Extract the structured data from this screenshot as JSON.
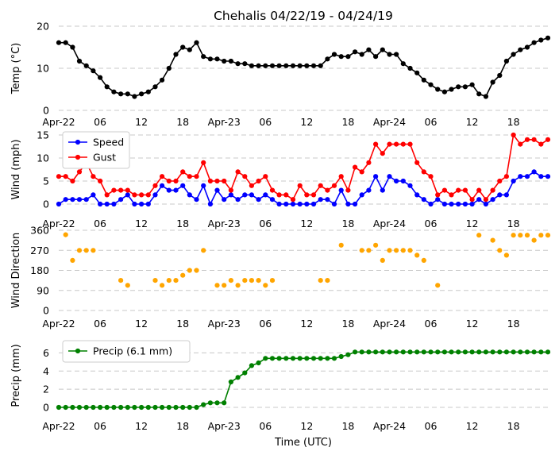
{
  "page": {
    "title": "Chehalis 04/22/19 - 04/24/19",
    "xlabel": "Time (UTC)"
  },
  "colors": {
    "temp": "#000000",
    "speed": "#0000ff",
    "gust": "#ff0000",
    "direction": "#ffa500",
    "precip": "#008000",
    "grid": "#c8c8c8"
  },
  "xaxis": {
    "range_hours": [
      0,
      71
    ],
    "tick_hours": [
      0,
      6,
      12,
      18,
      24,
      30,
      36,
      42,
      48,
      54,
      60,
      66
    ],
    "tick_labels": [
      "Apr-22",
      "06",
      "12",
      "18",
      "Apr-23",
      "06",
      "12",
      "18",
      "Apr-24",
      "06",
      "12",
      "18"
    ]
  },
  "chart_data": [
    {
      "type": "line",
      "ylabel": "Temp ($^\\circ$C)",
      "ylim": [
        0,
        20
      ],
      "yticks": [
        0,
        10,
        20
      ],
      "grid": true,
      "series": [
        {
          "name": "",
          "color_key": "temp",
          "x_hours": [
            0,
            1,
            2,
            3,
            4,
            5,
            6,
            7,
            8,
            9,
            10,
            11,
            12,
            13,
            14,
            15,
            16,
            17,
            18,
            19,
            20,
            21,
            22,
            23,
            24,
            25,
            26,
            27,
            28,
            29,
            30,
            31,
            32,
            33,
            34,
            35,
            36,
            37,
            38,
            39,
            40,
            41,
            42,
            43,
            44,
            45,
            46,
            47,
            48,
            49,
            50,
            51,
            52,
            53,
            54,
            55,
            56,
            57,
            58,
            59,
            60,
            61,
            62,
            63,
            64,
            65,
            66,
            67,
            68,
            69,
            70,
            71
          ],
          "values": [
            16.1,
            16.1,
            15.0,
            11.7,
            10.6,
            9.4,
            7.8,
            5.6,
            4.4,
            3.9,
            3.9,
            3.3,
            3.9,
            4.4,
            5.6,
            7.2,
            10.0,
            13.3,
            15.0,
            14.4,
            16.1,
            12.8,
            12.2,
            12.2,
            11.7,
            11.7,
            11.1,
            11.1,
            10.6,
            10.6,
            10.6,
            10.6,
            10.6,
            10.6,
            10.6,
            10.6,
            10.6,
            10.6,
            10.6,
            12.2,
            13.3,
            12.8,
            12.8,
            13.9,
            13.3,
            14.4,
            12.8,
            14.4,
            13.3,
            13.3,
            11.1,
            10.0,
            8.9,
            7.2,
            6.1,
            5.0,
            4.4,
            5.0,
            5.6,
            5.6,
            6.1,
            3.9,
            3.3,
            6.7,
            8.3,
            11.7,
            13.3,
            14.4,
            15.0,
            16.1,
            16.7,
            17.2
          ]
        }
      ]
    },
    {
      "type": "line",
      "ylabel": "Wind (mph)",
      "ylim": [
        0,
        15
      ],
      "yticks": [
        0,
        5,
        10,
        15
      ],
      "grid": true,
      "legend": "upper-left",
      "series": [
        {
          "name": "Speed",
          "color_key": "speed",
          "x_hours": [
            0,
            1,
            2,
            3,
            4,
            5,
            6,
            7,
            8,
            9,
            10,
            11,
            12,
            13,
            14,
            15,
            16,
            17,
            18,
            19,
            20,
            21,
            22,
            23,
            24,
            25,
            26,
            27,
            28,
            29,
            30,
            31,
            32,
            33,
            34,
            35,
            36,
            37,
            38,
            39,
            40,
            41,
            42,
            43,
            44,
            45,
            46,
            47,
            48,
            49,
            50,
            51,
            52,
            53,
            54,
            55,
            56,
            57,
            58,
            59,
            60,
            61,
            62,
            63,
            64,
            65,
            66,
            67,
            68,
            69,
            70,
            71
          ],
          "values": [
            0,
            1,
            1,
            1,
            1,
            2,
            0,
            0,
            0,
            1,
            2,
            0,
            0,
            0,
            2,
            4,
            3,
            3,
            4,
            2,
            1,
            4,
            0,
            3,
            1,
            2,
            1,
            2,
            2,
            1,
            2,
            1,
            0,
            0,
            0,
            0,
            0,
            0,
            1,
            1,
            0,
            3,
            0,
            0,
            2,
            3,
            6,
            3,
            6,
            5,
            5,
            4,
            2,
            1,
            0,
            1,
            0,
            0,
            0,
            0,
            0,
            1,
            0,
            1,
            2,
            2,
            5,
            6,
            6,
            7,
            6,
            6
          ]
        },
        {
          "name": "Gust",
          "color_key": "gust",
          "x_hours": [
            0,
            1,
            2,
            3,
            4,
            5,
            6,
            7,
            8,
            9,
            10,
            11,
            12,
            13,
            14,
            15,
            16,
            17,
            18,
            19,
            20,
            21,
            22,
            23,
            24,
            25,
            26,
            27,
            28,
            29,
            30,
            31,
            32,
            33,
            34,
            35,
            36,
            37,
            38,
            39,
            40,
            41,
            42,
            43,
            44,
            45,
            46,
            47,
            48,
            49,
            50,
            51,
            52,
            53,
            54,
            55,
            56,
            57,
            58,
            59,
            60,
            61,
            62,
            63,
            64,
            65,
            66,
            67,
            68,
            69,
            70,
            71
          ],
          "values": [
            6,
            6,
            5,
            7,
            9,
            6,
            5,
            2,
            3,
            3,
            3,
            2,
            2,
            2,
            4,
            6,
            5,
            5,
            7,
            6,
            6,
            9,
            5,
            5,
            5,
            3,
            7,
            6,
            4,
            5,
            6,
            3,
            2,
            2,
            1,
            4,
            2,
            2,
            4,
            3,
            4,
            6,
            3,
            8,
            7,
            9,
            13,
            11,
            13,
            13,
            13,
            13,
            9,
            7,
            6,
            2,
            3,
            2,
            3,
            3,
            1,
            3,
            1,
            3,
            5,
            6,
            15,
            13,
            14,
            14,
            13,
            14
          ]
        }
      ]
    },
    {
      "type": "scatter",
      "ylabel": "Wind Direction",
      "ylim": [
        0,
        360
      ],
      "yticks": [
        0,
        90,
        180,
        270,
        360
      ],
      "grid": true,
      "series": [
        {
          "name": "",
          "color_key": "direction",
          "x_hours": [
            1,
            2,
            3,
            4,
            5,
            9,
            10,
            14,
            15,
            16,
            17,
            18,
            19,
            20,
            21,
            23,
            24,
            25,
            26,
            27,
            28,
            29,
            30,
            31,
            38,
            39,
            41,
            44,
            45,
            46,
            47,
            48,
            49,
            50,
            51,
            52,
            53,
            55,
            61,
            63,
            64,
            65,
            66,
            67,
            68,
            69,
            70,
            71
          ],
          "values": [
            340,
            225,
            270,
            270,
            270,
            135,
            113,
            135,
            113,
            135,
            135,
            158,
            180,
            180,
            270,
            113,
            113,
            135,
            113,
            135,
            135,
            135,
            113,
            135,
            135,
            135,
            293,
            270,
            270,
            293,
            225,
            270,
            270,
            270,
            270,
            248,
            225,
            113,
            338,
            315,
            270,
            248,
            338,
            338,
            338,
            315,
            338,
            338
          ]
        }
      ]
    },
    {
      "type": "line",
      "ylabel": "Precip (mm)",
      "ylim": [
        0,
        7
      ],
      "yticks": [
        0,
        2,
        4,
        6
      ],
      "grid": true,
      "legend": "upper-left",
      "series": [
        {
          "name": "Precip (6.1 mm)",
          "color_key": "precip",
          "x_hours": [
            0,
            1,
            2,
            3,
            4,
            5,
            6,
            7,
            8,
            9,
            10,
            11,
            12,
            13,
            14,
            15,
            16,
            17,
            18,
            19,
            20,
            21,
            22,
            23,
            24,
            25,
            26,
            27,
            28,
            29,
            30,
            31,
            32,
            33,
            34,
            35,
            36,
            37,
            38,
            39,
            40,
            41,
            42,
            43,
            44,
            45,
            46,
            47,
            48,
            49,
            50,
            51,
            52,
            53,
            54,
            55,
            56,
            57,
            58,
            59,
            60,
            61,
            62,
            63,
            64,
            65,
            66,
            67,
            68,
            69,
            70,
            71
          ],
          "values": [
            0,
            0,
            0,
            0,
            0,
            0,
            0,
            0,
            0,
            0,
            0,
            0,
            0,
            0,
            0,
            0,
            0,
            0,
            0,
            0,
            0,
            0.3,
            0.5,
            0.5,
            0.5,
            2.8,
            3.3,
            3.8,
            4.6,
            4.9,
            5.4,
            5.4,
            5.4,
            5.4,
            5.4,
            5.4,
            5.4,
            5.4,
            5.4,
            5.4,
            5.4,
            5.6,
            5.8,
            6.1,
            6.1,
            6.1,
            6.1,
            6.1,
            6.1,
            6.1,
            6.1,
            6.1,
            6.1,
            6.1,
            6.1,
            6.1,
            6.1,
            6.1,
            6.1,
            6.1,
            6.1,
            6.1,
            6.1,
            6.1,
            6.1,
            6.1,
            6.1,
            6.1,
            6.1,
            6.1,
            6.1,
            6.1
          ]
        }
      ]
    }
  ]
}
